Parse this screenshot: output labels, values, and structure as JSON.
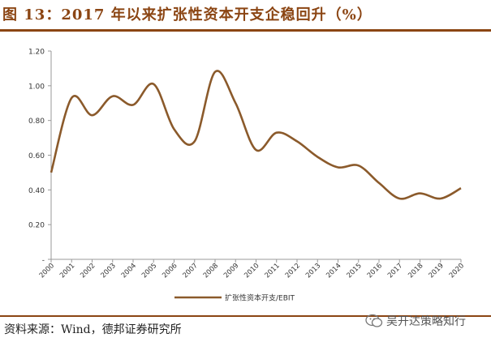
{
  "header": {
    "title": "图 13：2017 年以来扩张性资本开支企稳回升（%）"
  },
  "chart_data": {
    "type": "line",
    "title": "图 13：2017 年以来扩张性资本开支企稳回升（%）",
    "xlabel": "",
    "ylabel": "",
    "categories": [
      "2000",
      "2001",
      "2002",
      "2003",
      "2004",
      "2005",
      "2006",
      "2007",
      "2008",
      "2009",
      "2010",
      "2011",
      "2012",
      "2013",
      "2014",
      "2015",
      "2016",
      "2017",
      "2018",
      "2019",
      "2020"
    ],
    "series": [
      {
        "name": "扩张性资本开支/EBIT",
        "color": "#8B5A2B",
        "values": [
          0.5,
          0.93,
          0.83,
          0.94,
          0.89,
          1.01,
          0.75,
          0.68,
          1.08,
          0.9,
          0.63,
          0.73,
          0.68,
          0.59,
          0.53,
          0.54,
          0.44,
          0.35,
          0.38,
          0.35,
          0.41
        ]
      }
    ],
    "y_ticks": [
      {
        "value": 0,
        "label": "-"
      },
      {
        "value": 0.2,
        "label": "0.20"
      },
      {
        "value": 0.4,
        "label": "0.40"
      },
      {
        "value": 0.6,
        "label": "0.60"
      },
      {
        "value": 0.8,
        "label": "0.80"
      },
      {
        "value": 1.0,
        "label": "1.00"
      },
      {
        "value": 1.2,
        "label": "1.20"
      }
    ],
    "ylim": [
      0,
      1.2
    ],
    "grid": false,
    "legend": "bottom-center"
  },
  "footer": {
    "source": "资料来源：Wind，德邦证券研究所",
    "watermark": "吴开达策略知行",
    "watermark_icon": "wechat-icon"
  }
}
